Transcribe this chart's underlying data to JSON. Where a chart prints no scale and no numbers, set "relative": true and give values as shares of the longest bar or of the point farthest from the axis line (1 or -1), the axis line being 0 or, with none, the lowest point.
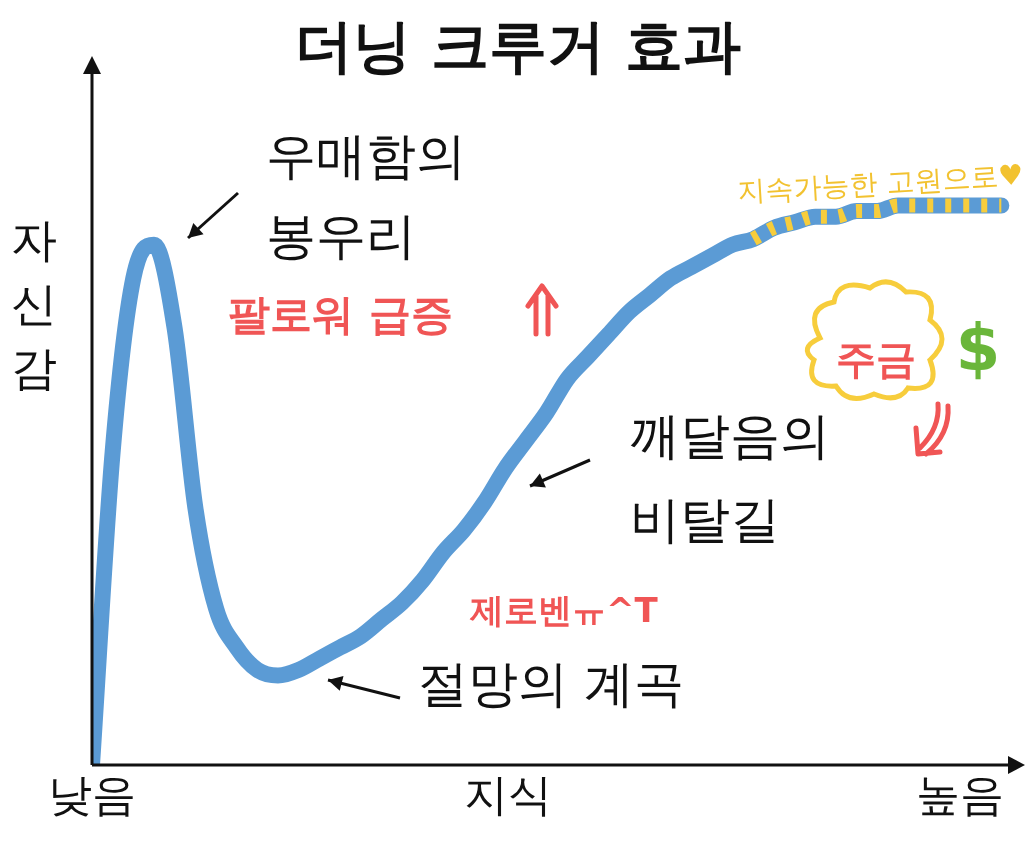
{
  "chart_data": {
    "type": "line",
    "title": "더닝 크루거 효과",
    "xlabel": "지식",
    "ylabel": "자신감",
    "relative": true,
    "legend": false,
    "marker": "none",
    "categories": [
      "낮음",
      null,
      null,
      null,
      null,
      null,
      null,
      null,
      null,
      null,
      null,
      null,
      null,
      null,
      null,
      null,
      null,
      null,
      null,
      null,
      null,
      null,
      null,
      null,
      null,
      null,
      null,
      null,
      null,
      null,
      null,
      null,
      null,
      null,
      null,
      null,
      null,
      null,
      null,
      null,
      null,
      null,
      "높음",
      null,
      null
    ],
    "series": [
      {
        "color": "#5b9bd5",
        "line_style": "solid",
        "values": [
          0,
          0.56,
          0.87,
          0.93,
          0.78,
          0.46,
          0.28,
          0.21,
          0.17,
          0.16,
          0.17,
          0.19,
          0.21,
          0.23,
          0.26,
          0.29,
          0.33,
          0.38,
          0.42,
          0.47,
          0.53,
          0.58,
          0.63,
          0.69,
          0.73,
          0.77,
          0.81,
          0.84,
          0.87,
          0.89,
          0.91,
          0.93,
          0.94,
          0.96,
          0.97,
          0.98,
          0.98,
          0.99,
          0.99,
          1,
          1,
          1,
          1,
          1,
          1
        ]
      },
      {
        "color": "#f7cd3c",
        "line_style": "dashed",
        "values": [
          null,
          null,
          null,
          null,
          null,
          null,
          null,
          null,
          null,
          null,
          null,
          null,
          null,
          null,
          null,
          null,
          null,
          null,
          null,
          null,
          null,
          null,
          null,
          null,
          null,
          null,
          null,
          null,
          null,
          null,
          null,
          null,
          0.94,
          0.96,
          0.97,
          0.98,
          0.98,
          0.99,
          0.99,
          1,
          1,
          1,
          1,
          1,
          1
        ]
      }
    ],
    "annotations": [
      "우매함의 봉우리",
      "팔로워 급증",
      "깨달음의 비탈길",
      "주금",
      "$",
      "제로벤ㅠ^T",
      "절망의 계곡",
      "지속가능한 고원으로♥"
    ]
  }
}
